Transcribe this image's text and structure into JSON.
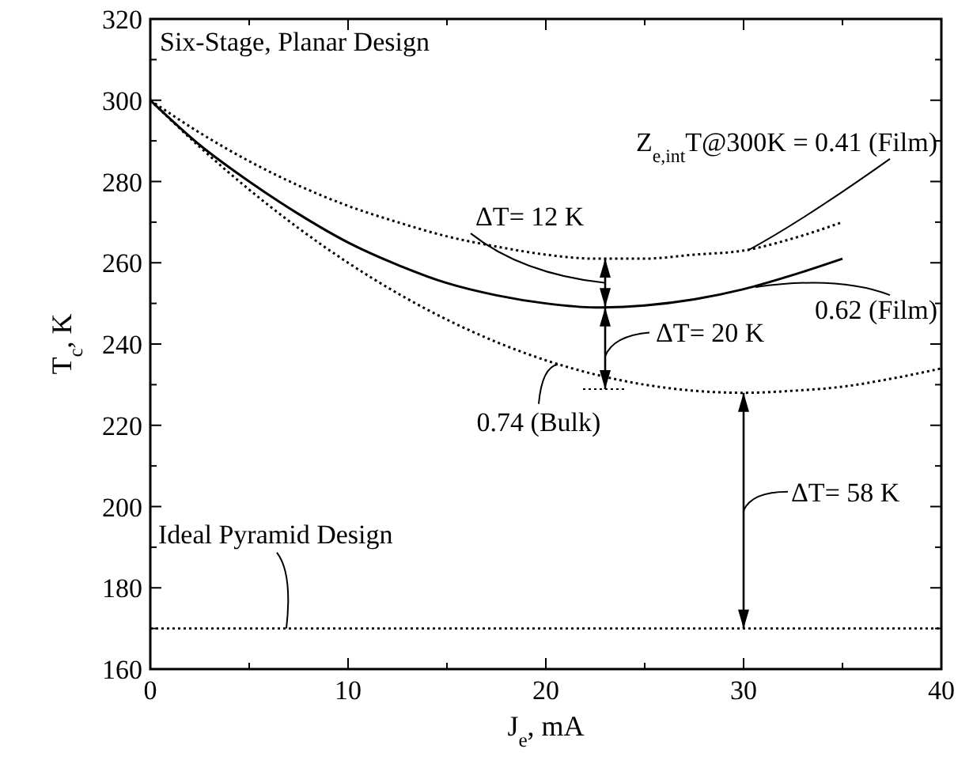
{
  "chart_data": {
    "type": "line",
    "xlabel": "J$_{e}$, mA",
    "ylabel": "T$_{c}$, K",
    "series": [
      {
        "color": "#000000",
        "line_style": "dotted",
        "x": [
          0,
          2.5,
          5,
          7.5,
          10,
          12.5,
          15,
          17.5,
          20,
          22.5,
          25,
          27.5,
          30,
          32.5,
          35
        ],
        "values": [
          300,
          292,
          285,
          279,
          274,
          270,
          266.5,
          264,
          262,
          261,
          261,
          262,
          263,
          266,
          270
        ]
      },
      {
        "color": "#000000",
        "line_style": "solid",
        "x": [
          0,
          2.5,
          5,
          7.5,
          10,
          12.5,
          15,
          17.5,
          20,
          22.5,
          25,
          27.5,
          30,
          32.5,
          35
        ],
        "values": [
          300,
          289,
          280,
          272,
          265,
          259.5,
          255,
          252,
          250,
          249,
          249.5,
          251,
          253.5,
          257,
          261
        ]
      },
      {
        "color": "#000000",
        "line_style": "dotted",
        "x": [
          0,
          2.5,
          5,
          7.5,
          10,
          12.5,
          15,
          17.5,
          20,
          22.5,
          25,
          27.5,
          30,
          32.5,
          35,
          37.5,
          40
        ],
        "values": [
          300,
          288.5,
          278,
          268.5,
          260,
          252.5,
          246,
          240.5,
          236,
          232.5,
          230,
          228.5,
          228,
          228.5,
          229.5,
          231.5,
          234
        ]
      }
    ],
    "xlim": [
      0,
      40
    ],
    "xticks": [
      0,
      {
        "value": 5,
        "label": null
      },
      10,
      {
        "value": 15,
        "label": null
      },
      20,
      {
        "value": 25,
        "label": null
      },
      30,
      {
        "value": 35,
        "label": null
      },
      40
    ],
    "ylim": [
      160,
      320
    ],
    "yticks": [
      160,
      {
        "value": 170,
        "label": null
      },
      180,
      {
        "value": 190,
        "label": null
      },
      200,
      {
        "value": 210,
        "label": null
      },
      220,
      {
        "value": 230,
        "label": null
      },
      240,
      {
        "value": 250,
        "label": null
      },
      260,
      {
        "value": 270,
        "label": null
      },
      280,
      {
        "value": 290,
        "label": null
      },
      300,
      {
        "value": 310,
        "label": null
      },
      320
    ],
    "grid": false,
    "marker": "none",
    "ref_lines": [
      {
        "axis": "y",
        "value": 170,
        "label": "Ideal Pyramid Design",
        "line_style": "dotted",
        "color": "#000000"
      }
    ],
    "annotations": [
      "Six-Stage, Planar Design",
      {
        "text": "Z$_{e,int}$T@300K  = 0.41 (Film)",
        "x": 30.2,
        "y": 263
      },
      {
        "text": "0.62 (Film)",
        "x": 30.6,
        "y": 254
      },
      {
        "text": "0.74 (Bulk)",
        "x": 20.6,
        "y": 235
      },
      {
        "text": "ΔT= 12 K",
        "x": 23,
        "y": 261
      },
      {
        "text": "ΔT= 20 K",
        "x": 23,
        "y": 249
      },
      "ΔT= 58 K"
    ]
  }
}
